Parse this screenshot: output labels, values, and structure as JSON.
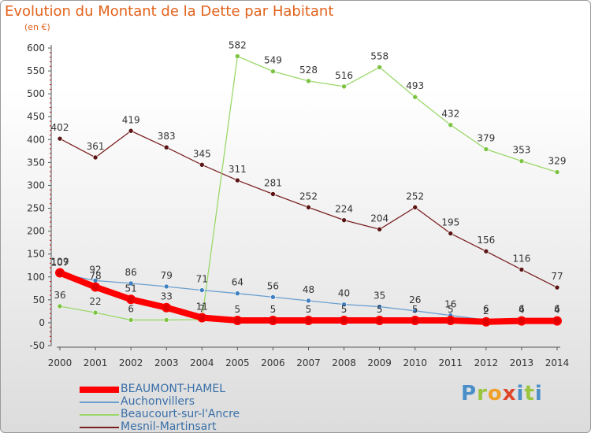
{
  "title": "Evolution du Montant de la Dette par Habitant",
  "subtitle": "(en €)",
  "logo_text": "Proxiti",
  "chart_data": {
    "type": "line",
    "x": [
      2000,
      2001,
      2002,
      2003,
      2004,
      2005,
      2006,
      2007,
      2008,
      2009,
      2010,
      2011,
      2012,
      2013,
      2014
    ],
    "ylim": [
      -50,
      600
    ],
    "yticks": [
      -50,
      0,
      50,
      100,
      150,
      200,
      250,
      300,
      350,
      400,
      450,
      500,
      550,
      600
    ],
    "grid": false,
    "legend_position": "bottom-left",
    "series": [
      {
        "name": "Mesnil-Martinsart",
        "color": "#7a2020",
        "marker_color": "#5a1414",
        "values": [
          402,
          361,
          419,
          383,
          345,
          311,
          281,
          252,
          224,
          204,
          252,
          195,
          156,
          116,
          77
        ],
        "labels": [
          "402",
          "361",
          "419",
          "383",
          "345",
          "311",
          "281",
          "252",
          "224",
          "204",
          "252",
          "195",
          "156",
          "116",
          "77"
        ]
      },
      {
        "name": "Beaucourt-sur-l'Ancre",
        "color": "#9bd86a",
        "marker_color": "#7cc342",
        "values": [
          36,
          22,
          6,
          6,
          7,
          582,
          549,
          528,
          516,
          558,
          493,
          432,
          379,
          353,
          329
        ],
        "labels": [
          "36",
          "22",
          "6",
          "6",
          "7",
          "582",
          "549",
          "528",
          "516",
          "558",
          "493",
          "432",
          "379",
          "353",
          "329"
        ]
      },
      {
        "name": "Auchonvillers",
        "color": "#6a9fd0",
        "marker_color": "#3d7fc0",
        "values": [
          107,
          92,
          86,
          79,
          71,
          64,
          56,
          48,
          40,
          35,
          26,
          16,
          6,
          6,
          6
        ],
        "labels": [
          "107",
          "92",
          "86",
          "79",
          "71",
          "64",
          "56",
          "48",
          "40",
          "35",
          "26",
          "16",
          "6",
          "6",
          "6"
        ]
      },
      {
        "name": "BEAUMONT-HAMEL",
        "color": "#ff0000",
        "marker_color": "#e00000",
        "values": [
          109,
          78,
          51,
          33,
          11,
          5,
          5,
          5,
          5,
          5,
          5,
          5,
          2,
          4,
          4
        ],
        "labels": [
          "109",
          "78",
          "51",
          "33",
          "11",
          "5",
          "5",
          "5",
          "5",
          "5",
          "5",
          "5",
          "2",
          "4",
          "4"
        ]
      }
    ],
    "legend_order": [
      "BEAUMONT-HAMEL",
      "Auchonvillers",
      "Beaucourt-sur-l'Ancre",
      "Mesnil-Martinsart"
    ]
  }
}
